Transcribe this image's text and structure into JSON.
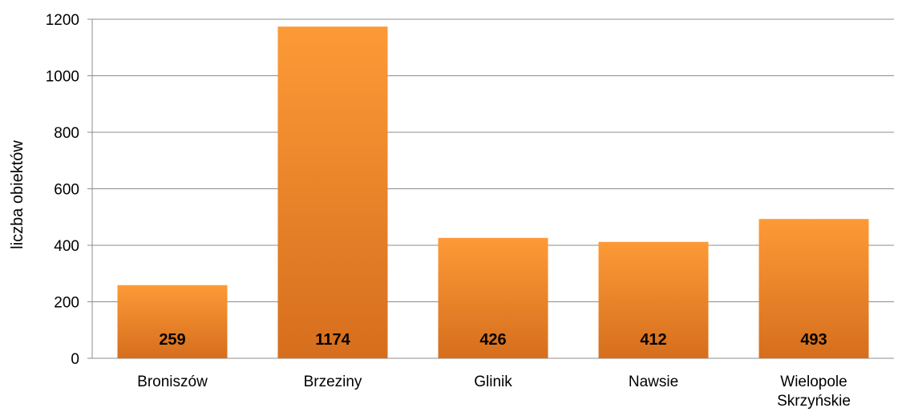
{
  "chart_data": {
    "type": "bar",
    "categories": [
      "Broniszów",
      "Brzeziny",
      "Glinik",
      "Nawsie",
      "Wielopole Skrzyńskie"
    ],
    "category_lines": [
      [
        "Broniszów"
      ],
      [
        "Brzeziny"
      ],
      [
        "Glinik"
      ],
      [
        "Nawsie"
      ],
      [
        "Wielopole",
        "Skrzyńskie"
      ]
    ],
    "values": [
      259,
      1174,
      426,
      412,
      493
    ],
    "data_labels": [
      "259",
      "1174",
      "426",
      "412",
      "493"
    ],
    "yticks": [
      "0",
      "200",
      "400",
      "600",
      "800",
      "1000",
      "1200"
    ],
    "ylim": [
      0,
      1200
    ],
    "ylabel": "liczba obiektów",
    "xlabel": "",
    "title": "",
    "grid": "horizontal",
    "legend": "none",
    "colors": {
      "bar_top": "#fd9a37",
      "bar_bottom": "#d66e1d",
      "grid": "#8c8c8c"
    }
  }
}
